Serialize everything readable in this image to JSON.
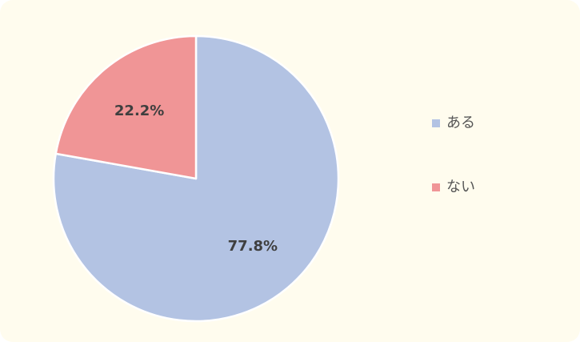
{
  "colors": {
    "background": "#fffcee",
    "slice_stroke": "#ffffff"
  },
  "chart_data": {
    "type": "pie",
    "title": "",
    "start_angle_deg": 0,
    "direction": "clockwise",
    "slices": [
      {
        "label": "ある",
        "value": 77.8,
        "display": "77.8%",
        "color": "#b3c3e3"
      },
      {
        "label": "ない",
        "value": 22.2,
        "display": "22.2%",
        "color": "#f09596"
      }
    ],
    "legend": {
      "placement": "right",
      "entries": [
        {
          "label": "ある",
          "color": "#b3c3e3"
        },
        {
          "label": "ない",
          "color": "#f09596"
        }
      ]
    }
  }
}
